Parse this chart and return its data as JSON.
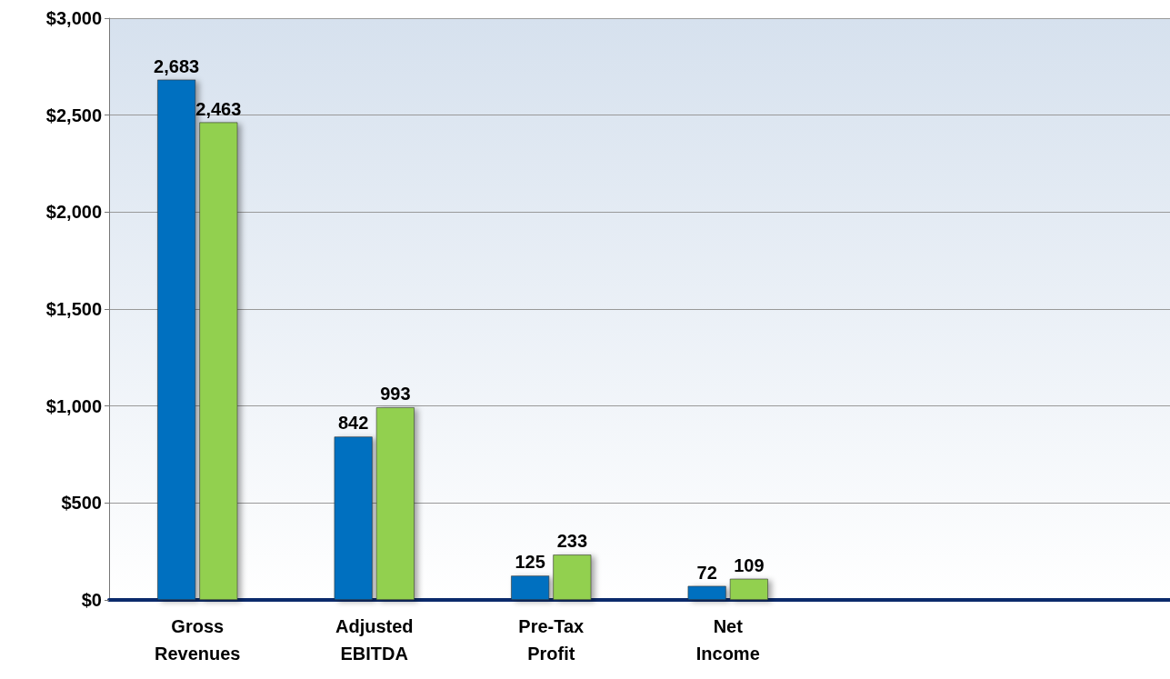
{
  "chart_data": {
    "type": "bar",
    "categories": [
      "Gross\nRevenues",
      "Adjusted\nEBITDA",
      "Pre-Tax\nProfit",
      "Net\nIncome",
      null,
      null
    ],
    "series": [
      {
        "color": "#0070c0",
        "values": [
          2683,
          842,
          125,
          72,
          null,
          null
        ],
        "value_labels": [
          "2,683",
          "842",
          "125",
          "72",
          null,
          null
        ]
      },
      {
        "color": "#92d050",
        "values": [
          2463,
          993,
          233,
          109,
          null,
          null
        ],
        "value_labels": [
          "2,463",
          "993",
          "233",
          "109",
          null,
          null
        ]
      }
    ],
    "ylim": [
      0,
      3000
    ],
    "yticks": [
      {
        "value": 0,
        "label": "$0"
      },
      {
        "value": 500,
        "label": "$500"
      },
      {
        "value": 1000,
        "label": "$1,000"
      },
      {
        "value": 1500,
        "label": "$1,500"
      },
      {
        "value": 2000,
        "label": "$2,000"
      },
      {
        "value": 2500,
        "label": "$2,500"
      },
      {
        "value": 3000,
        "label": "$3,000"
      }
    ],
    "grid": "y"
  }
}
